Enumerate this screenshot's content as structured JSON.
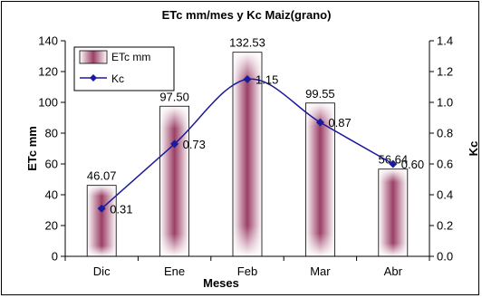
{
  "chart_data": {
    "type": "bar",
    "title": "ETc mm/mes y Kc Maiz(grano)",
    "xlabel": "Meses",
    "ylabel": "ETc mm",
    "y2label": "Kc",
    "categories": [
      "Dic",
      "Ene",
      "Feb",
      "Mar",
      "Abr"
    ],
    "ylim": [
      0,
      140
    ],
    "y2lim": [
      0,
      1.4
    ],
    "yticks": [
      "0",
      "20",
      "40",
      "60",
      "80",
      "100",
      "120",
      "140"
    ],
    "y2ticks": [
      "0.0",
      "0.2",
      "0.4",
      "0.6",
      "0.8",
      "1.0",
      "1.2",
      "1.4"
    ],
    "grid": false,
    "legend_position": "top-left",
    "series": [
      {
        "name": "ETc mm",
        "type": "bar",
        "axis": "left",
        "values": [
          46.07,
          97.5,
          132.53,
          99.55,
          56.64
        ],
        "labels": [
          "46.07",
          "97.50",
          "132.53",
          "99.55",
          "56.64"
        ],
        "color": "#9b3f66"
      },
      {
        "name": "Kc",
        "type": "line",
        "axis": "right",
        "values": [
          0.31,
          0.73,
          1.15,
          0.87,
          0.6
        ],
        "labels": [
          "0.31",
          "0.73",
          "1.15",
          "0.87",
          "0.60"
        ],
        "color": "#1a1a9a"
      }
    ]
  }
}
